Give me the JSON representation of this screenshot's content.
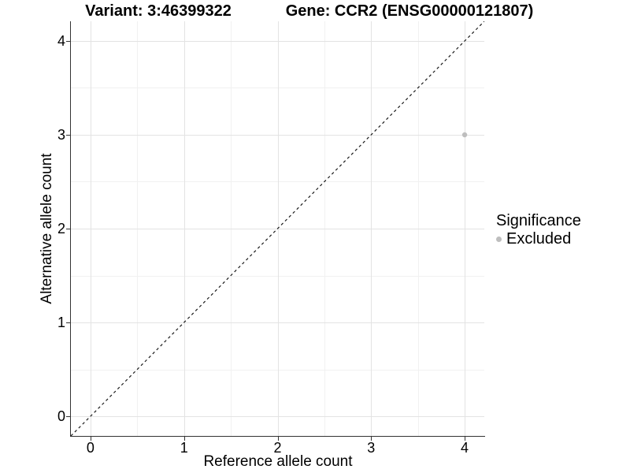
{
  "header": {
    "variant_title": "Variant: 3:46399322",
    "gene_title": "Gene: CCR2 (ENSG00000121807)"
  },
  "chart_data": {
    "type": "scatter",
    "xlabel": "Reference allele count",
    "ylabel": "Alternative allele count",
    "xlim": [
      -0.21,
      4.21
    ],
    "ylim": [
      -0.21,
      4.21
    ],
    "x_ticks": [
      0,
      1,
      2,
      3,
      4
    ],
    "y_ticks": [
      0,
      1,
      2,
      3,
      4
    ],
    "x_minor_ticks": [
      0.5,
      1.5,
      2.5,
      3.5
    ],
    "y_minor_ticks": [
      0.5,
      1.5,
      2.5,
      3.5
    ],
    "grid": "major+minor",
    "series": [
      {
        "name": "Excluded",
        "color": "#bebebe",
        "point_radius": 3.2,
        "points": [
          {
            "x": 4,
            "y": 3
          }
        ]
      }
    ],
    "reference_line": {
      "kind": "identity",
      "linetype": "dashed",
      "color": "#1a1a1a"
    },
    "legend": {
      "title": "Significance",
      "position": "right",
      "entries": [
        {
          "label": "Excluded",
          "color": "#bebebe"
        }
      ]
    }
  },
  "style_colors": {
    "background": "#ffffff",
    "grid_major": "#e3e3e3",
    "grid_minor": "#f1f1f1",
    "axis_line": "#333333",
    "text": "#000000"
  }
}
